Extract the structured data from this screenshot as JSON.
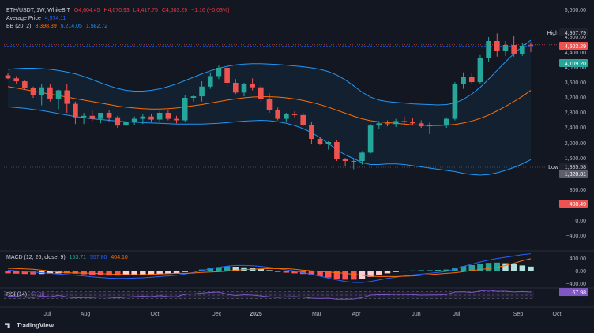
{
  "header": {
    "symbol": "ETH/USDT, 1W, WhiteBIT",
    "open": "O4,604.45",
    "high": "H4,670.93",
    "low": "L4,417.75",
    "close": "C4,603.29",
    "change": "−1.16 (−0.03%)",
    "avg_label": "Average Price",
    "avg_value": "4,574.11",
    "bb_label": "BB (20, 2)",
    "bb_mid": "3,398.39",
    "bb_upper": "5,214.05",
    "bb_lower": "1,582.72"
  },
  "macd_header": {
    "label": "MACD (12, 26, close, 9)",
    "hist": "153.71",
    "macd": "557.80",
    "signal": "404.10"
  },
  "rsi_header": {
    "label": "RSI (14)",
    "value": "67.98"
  },
  "brand": "TradingView",
  "colors": {
    "up": "#26a69a",
    "down": "#ef5350",
    "bb_band": "#2196f3",
    "bb_mid": "#ff6d00",
    "avg": "#2962ff",
    "rsi": "#7e57c2",
    "macd": "#2962ff",
    "signal": "#ff6d00"
  },
  "chart_data": [
    {
      "type": "candlestick",
      "title": "ETH/USDT",
      "ylim": [
        -600,
        5600
      ],
      "y_ticks": [
        "5,600.00",
        "4,800.00",
        "4,400.00",
        "4,000.00",
        "3,600.00",
        "3,200.00",
        "2,800.00",
        "2,400.00",
        "2,000.00",
        "1,600.00",
        "800.00",
        "400.00",
        "0.00",
        "−400.00"
      ],
      "x_ticks": [
        "Jul",
        "Aug",
        "Oct",
        "Dec",
        "2025",
        "Mar",
        "Apr",
        "Jun",
        "Jul",
        "Sep",
        "Oct"
      ],
      "price_labels": {
        "high": "4,957.79",
        "current": "4,603.29",
        "average": "4,109.20",
        "low": "1,385.58",
        "low2": "1,320.81",
        "extra": "408.49"
      },
      "price_label_words": {
        "high": "High",
        "low": "Low"
      },
      "ohlc": [
        [
          3800,
          3860,
          3700,
          3720
        ],
        [
          3720,
          3780,
          3580,
          3640
        ],
        [
          3640,
          3660,
          3420,
          3460
        ],
        [
          3460,
          3500,
          3200,
          3280
        ],
        [
          3280,
          3560,
          3000,
          3480
        ],
        [
          3480,
          3560,
          3100,
          3180
        ],
        [
          3180,
          3420,
          2900,
          3400
        ],
        [
          3400,
          3560,
          2800,
          3040
        ],
        [
          3040,
          3100,
          2500,
          2680
        ],
        [
          2680,
          2800,
          2500,
          2720
        ],
        [
          2720,
          2860,
          2580,
          2640
        ],
        [
          2640,
          2800,
          2520,
          2800
        ],
        [
          2800,
          2880,
          2560,
          2680
        ],
        [
          2680,
          2720,
          2400,
          2460
        ],
        [
          2460,
          2600,
          2360,
          2560
        ],
        [
          2560,
          2700,
          2480,
          2640
        ],
        [
          2640,
          2760,
          2500,
          2700
        ],
        [
          2700,
          2760,
          2560,
          2620
        ],
        [
          2620,
          2840,
          2560,
          2800
        ],
        [
          2800,
          2880,
          2600,
          2640
        ],
        [
          2640,
          2720,
          2520,
          2600
        ],
        [
          2600,
          3280,
          2560,
          3200
        ],
        [
          3200,
          3280,
          3100,
          3240
        ],
        [
          3240,
          3640,
          3100,
          3500
        ],
        [
          3500,
          3880,
          3440,
          3780
        ],
        [
          3780,
          4060,
          3700,
          4000
        ],
        [
          4000,
          4080,
          3500,
          3600
        ],
        [
          3600,
          3700,
          3300,
          3340
        ],
        [
          3340,
          3600,
          3240,
          3560
        ],
        [
          3560,
          3720,
          3400,
          3480
        ],
        [
          3480,
          3540,
          3100,
          3160
        ],
        [
          3160,
          3320,
          2800,
          2880
        ],
        [
          2880,
          2940,
          2600,
          2640
        ],
        [
          2640,
          2800,
          2560,
          2760
        ],
        [
          2760,
          2840,
          2680,
          2740
        ],
        [
          2740,
          2800,
          2440,
          2480
        ],
        [
          2480,
          2560,
          2000,
          2120
        ],
        [
          2120,
          2180,
          1960,
          2000
        ],
        [
          2000,
          2060,
          1840,
          2040
        ],
        [
          2040,
          2080,
          1560,
          1600
        ],
        [
          1600,
          1620,
          1480,
          1560
        ],
        [
          1560,
          1600,
          1420,
          1560
        ],
        [
          1560,
          1800,
          1500,
          1760
        ],
        [
          1760,
          2500,
          1740,
          2460
        ],
        [
          2460,
          2580,
          2380,
          2520
        ],
        [
          2520,
          2600,
          2440,
          2500
        ],
        [
          2500,
          2640,
          2420,
          2580
        ],
        [
          2580,
          2700,
          2480,
          2560
        ],
        [
          2560,
          2660,
          2460,
          2520
        ],
        [
          2520,
          2600,
          2400,
          2440
        ],
        [
          2440,
          2540,
          2240,
          2480
        ],
        [
          2480,
          2560,
          2380,
          2460
        ],
        [
          2460,
          2680,
          2400,
          2640
        ],
        [
          2640,
          3620,
          2600,
          3560
        ],
        [
          3560,
          3880,
          3440,
          3760
        ],
        [
          3760,
          3860,
          3560,
          3620
        ],
        [
          3620,
          4340,
          3580,
          4260
        ],
        [
          4260,
          4800,
          4160,
          4700
        ],
        [
          4700,
          4900,
          4300,
          4440
        ],
        [
          4440,
          4700,
          4320,
          4600
        ],
        [
          4600,
          4820,
          4300,
          4380
        ],
        [
          4380,
          4640,
          4320,
          4580
        ],
        [
          4604.45,
          4670.93,
          4417.75,
          4603.29
        ]
      ],
      "bb_upper": [
        3960,
        3980,
        3990,
        3990,
        3980,
        3960,
        3930,
        3890,
        3840,
        3770,
        3690,
        3600,
        3520,
        3450,
        3400,
        3380,
        3380,
        3400,
        3440,
        3500,
        3570,
        3660,
        3750,
        3840,
        3920,
        3990,
        4040,
        4080,
        4100,
        4110,
        4110,
        4100,
        4090,
        4070,
        4050,
        4030,
        4000,
        3960,
        3900,
        3810,
        3680,
        3520,
        3350,
        3220,
        3140,
        3100,
        3080,
        3060,
        3040,
        3030,
        3020,
        3010,
        3020,
        3060,
        3160,
        3300,
        3480,
        3700,
        3930,
        4160,
        4380,
        4560,
        4720
      ],
      "bb_mid": [
        3500,
        3460,
        3420,
        3380,
        3340,
        3300,
        3260,
        3220,
        3180,
        3140,
        3100,
        3060,
        3020,
        2980,
        2950,
        2930,
        2910,
        2900,
        2900,
        2910,
        2930,
        2960,
        2990,
        3020,
        3060,
        3100,
        3140,
        3170,
        3200,
        3220,
        3230,
        3230,
        3220,
        3200,
        3170,
        3130,
        3080,
        3020,
        2950,
        2870,
        2790,
        2710,
        2640,
        2590,
        2560,
        2540,
        2520,
        2500,
        2480,
        2470,
        2460,
        2460,
        2470,
        2490,
        2530,
        2580,
        2650,
        2740,
        2850,
        2970,
        3100,
        3240,
        3398.39
      ],
      "bb_lower": [
        2960,
        2940,
        2920,
        2890,
        2860,
        2820,
        2780,
        2740,
        2700,
        2670,
        2640,
        2620,
        2600,
        2580,
        2560,
        2550,
        2540,
        2530,
        2520,
        2510,
        2500,
        2500,
        2500,
        2500,
        2510,
        2520,
        2540,
        2560,
        2580,
        2590,
        2600,
        2590,
        2560,
        2520,
        2460,
        2380,
        2280,
        2150,
        2000,
        1840,
        1700,
        1600,
        1530,
        1500,
        1500,
        1510,
        1510,
        1500,
        1480,
        1460,
        1440,
        1420,
        1400,
        1380,
        1350,
        1330,
        1320,
        1330,
        1360,
        1400,
        1450,
        1510,
        1582.72
      ],
      "avg_price": 4574.11
    },
    {
      "type": "bar",
      "title": "MACD (12, 26, close, 9)",
      "ylim": [
        -600,
        700
      ],
      "y_ticks": [
        "400.00",
        "0.00",
        "−400.00"
      ],
      "histogram": [
        -60,
        -70,
        -80,
        -90,
        -80,
        -70,
        -60,
        -60,
        -70,
        -90,
        -110,
        -120,
        -130,
        -130,
        -120,
        -110,
        -100,
        -90,
        -80,
        -70,
        -60,
        -20,
        20,
        60,
        100,
        140,
        160,
        150,
        130,
        110,
        80,
        40,
        0,
        -40,
        -60,
        -80,
        -110,
        -150,
        -190,
        -230,
        -260,
        -260,
        -230,
        -170,
        -110,
        -60,
        -20,
        10,
        30,
        40,
        40,
        50,
        60,
        120,
        170,
        200,
        240,
        270,
        280,
        260,
        230,
        190,
        153.71
      ],
      "macd": [
        40,
        20,
        0,
        -20,
        -40,
        -60,
        -80,
        -100,
        -120,
        -140,
        -170,
        -190,
        -210,
        -220,
        -220,
        -210,
        -200,
        -180,
        -160,
        -140,
        -120,
        -80,
        -30,
        30,
        80,
        130,
        170,
        190,
        190,
        180,
        160,
        130,
        90,
        50,
        10,
        -40,
        -90,
        -150,
        -210,
        -270,
        -320,
        -350,
        -350,
        -320,
        -270,
        -220,
        -180,
        -140,
        -110,
        -80,
        -60,
        -30,
        0,
        80,
        160,
        230,
        300,
        360,
        410,
        450,
        490,
        530,
        557.8
      ],
      "signal": [
        100,
        90,
        80,
        70,
        40,
        10,
        -20,
        -40,
        -50,
        -50,
        -60,
        -70,
        -80,
        -90,
        -100,
        -100,
        -100,
        -90,
        -80,
        -70,
        -60,
        -60,
        -50,
        -30,
        -20,
        -10,
        10,
        40,
        60,
        70,
        80,
        90,
        90,
        90,
        70,
        40,
        20,
        0,
        -20,
        -40,
        -60,
        -90,
        -120,
        -150,
        -160,
        -160,
        -160,
        -150,
        -140,
        -120,
        -100,
        -80,
        -60,
        -40,
        -10,
        30,
        60,
        90,
        130,
        190,
        260,
        340,
        404.1
      ]
    },
    {
      "type": "line",
      "title": "RSI (14)",
      "ylim": [
        0,
        100
      ],
      "values": [
        44,
        42,
        38,
        35,
        45,
        40,
        48,
        39,
        33,
        36,
        35,
        40,
        37,
        33,
        38,
        41,
        43,
        41,
        46,
        41,
        40,
        55,
        57,
        62,
        66,
        68,
        55,
        47,
        52,
        50,
        45,
        40,
        36,
        40,
        41,
        38,
        32,
        30,
        32,
        26,
        26,
        27,
        35,
        50,
        53,
        52,
        55,
        54,
        53,
        50,
        51,
        51,
        54,
        68,
        70,
        66,
        74,
        78,
        72,
        73,
        69,
        71,
        67.98
      ]
    }
  ]
}
